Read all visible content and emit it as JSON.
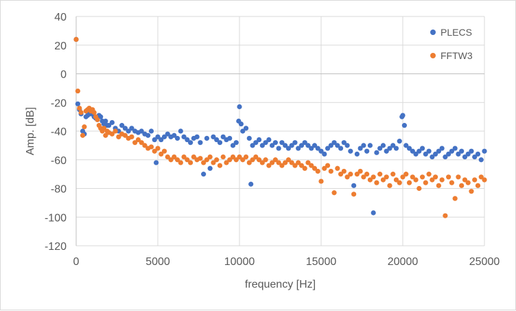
{
  "chart_data": {
    "type": "scatter",
    "title": "",
    "xlabel": "frequency [Hz]",
    "ylabel": "Amp. [dB]",
    "xlim": [
      0,
      25000
    ],
    "ylim": [
      -120,
      40
    ],
    "x_ticks": [
      0,
      5000,
      10000,
      15000,
      20000,
      25000
    ],
    "y_ticks": [
      -120,
      -100,
      -80,
      -60,
      -40,
      -20,
      0,
      20,
      40
    ],
    "grid": true,
    "legend_position": "top-right",
    "series": [
      {
        "name": "PLECS",
        "color": "#4472C4",
        "points": [
          [
            0,
            24
          ],
          [
            100,
            -21
          ],
          [
            200,
            -25
          ],
          [
            300,
            -28
          ],
          [
            400,
            -40
          ],
          [
            500,
            -42
          ],
          [
            600,
            -30
          ],
          [
            700,
            -29
          ],
          [
            800,
            -27
          ],
          [
            900,
            -28
          ],
          [
            1000,
            -28
          ],
          [
            1100,
            -30
          ],
          [
            1200,
            -31
          ],
          [
            1300,
            -32
          ],
          [
            1400,
            -29
          ],
          [
            1500,
            -30
          ],
          [
            1600,
            -33
          ],
          [
            1700,
            -35
          ],
          [
            1800,
            -33
          ],
          [
            1900,
            -36
          ],
          [
            2000,
            -36
          ],
          [
            2200,
            -34
          ],
          [
            2400,
            -38
          ],
          [
            2600,
            -40
          ],
          [
            2800,
            -36
          ],
          [
            3000,
            -38
          ],
          [
            3200,
            -40
          ],
          [
            3400,
            -38
          ],
          [
            3600,
            -40
          ],
          [
            3800,
            -41
          ],
          [
            4000,
            -40
          ],
          [
            4200,
            -42
          ],
          [
            4400,
            -43
          ],
          [
            4600,
            -40
          ],
          [
            4800,
            -46
          ],
          [
            4900,
            -62
          ],
          [
            5000,
            -44
          ],
          [
            5200,
            -46
          ],
          [
            5400,
            -44
          ],
          [
            5600,
            -42
          ],
          [
            5800,
            -44
          ],
          [
            6000,
            -43
          ],
          [
            6200,
            -45
          ],
          [
            6400,
            -40
          ],
          [
            6600,
            -44
          ],
          [
            6800,
            -46
          ],
          [
            7000,
            -48
          ],
          [
            7200,
            -45
          ],
          [
            7400,
            -44
          ],
          [
            7600,
            -48
          ],
          [
            7800,
            -70
          ],
          [
            8000,
            -45
          ],
          [
            8200,
            -66
          ],
          [
            8400,
            -44
          ],
          [
            8600,
            -46
          ],
          [
            8800,
            -48
          ],
          [
            9000,
            -44
          ],
          [
            9200,
            -46
          ],
          [
            9400,
            -45
          ],
          [
            9600,
            -50
          ],
          [
            9800,
            -48
          ],
          [
            9950,
            -33
          ],
          [
            10000,
            -23
          ],
          [
            10100,
            -35
          ],
          [
            10200,
            -40
          ],
          [
            10400,
            -38
          ],
          [
            10600,
            -45
          ],
          [
            10700,
            -77
          ],
          [
            10800,
            -50
          ],
          [
            11000,
            -48
          ],
          [
            11200,
            -46
          ],
          [
            11400,
            -50
          ],
          [
            11600,
            -48
          ],
          [
            11800,
            -46
          ],
          [
            12000,
            -50
          ],
          [
            12200,
            -48
          ],
          [
            12400,
            -52
          ],
          [
            12600,
            -48
          ],
          [
            12800,
            -50
          ],
          [
            13000,
            -52
          ],
          [
            13200,
            -50
          ],
          [
            13400,
            -48
          ],
          [
            13600,
            -52
          ],
          [
            13800,
            -50
          ],
          [
            14000,
            -48
          ],
          [
            14200,
            -50
          ],
          [
            14400,
            -52
          ],
          [
            14600,
            -50
          ],
          [
            14800,
            -52
          ],
          [
            15000,
            -54
          ],
          [
            15200,
            -56
          ],
          [
            15400,
            -52
          ],
          [
            15600,
            -50
          ],
          [
            15800,
            -48
          ],
          [
            16000,
            -50
          ],
          [
            16200,
            -52
          ],
          [
            16400,
            -48
          ],
          [
            16600,
            -50
          ],
          [
            16800,
            -54
          ],
          [
            17000,
            -78
          ],
          [
            17200,
            -56
          ],
          [
            17400,
            -52
          ],
          [
            17600,
            -50
          ],
          [
            17800,
            -54
          ],
          [
            18000,
            -50
          ],
          [
            18200,
            -97
          ],
          [
            18400,
            -55
          ],
          [
            18600,
            -52
          ],
          [
            18800,
            -50
          ],
          [
            19000,
            -54
          ],
          [
            19200,
            -52
          ],
          [
            19400,
            -50
          ],
          [
            19600,
            -52
          ],
          [
            19800,
            -47
          ],
          [
            19950,
            -30
          ],
          [
            20000,
            -29
          ],
          [
            20100,
            -36
          ],
          [
            20200,
            -50
          ],
          [
            20400,
            -52
          ],
          [
            20600,
            -54
          ],
          [
            20800,
            -56
          ],
          [
            21000,
            -54
          ],
          [
            21200,
            -52
          ],
          [
            21400,
            -56
          ],
          [
            21600,
            -54
          ],
          [
            21800,
            -58
          ],
          [
            22000,
            -56
          ],
          [
            22200,
            -54
          ],
          [
            22400,
            -52
          ],
          [
            22600,
            -58
          ],
          [
            22800,
            -56
          ],
          [
            23000,
            -54
          ],
          [
            23200,
            -52
          ],
          [
            23400,
            -56
          ],
          [
            23600,
            -54
          ],
          [
            23800,
            -58
          ],
          [
            24000,
            -56
          ],
          [
            24200,
            -54
          ],
          [
            24400,
            -58
          ],
          [
            24600,
            -56
          ],
          [
            24800,
            -60
          ],
          [
            25000,
            -54
          ]
        ]
      },
      {
        "name": "FFTW3",
        "color": "#ED7D31",
        "points": [
          [
            0,
            24
          ],
          [
            100,
            -12
          ],
          [
            200,
            -24
          ],
          [
            300,
            -27
          ],
          [
            400,
            -43
          ],
          [
            500,
            -37
          ],
          [
            600,
            -26
          ],
          [
            700,
            -25
          ],
          [
            800,
            -24
          ],
          [
            900,
            -26
          ],
          [
            1000,
            -25
          ],
          [
            1100,
            -27
          ],
          [
            1200,
            -30
          ],
          [
            1300,
            -32
          ],
          [
            1400,
            -36
          ],
          [
            1500,
            -38
          ],
          [
            1600,
            -40
          ],
          [
            1700,
            -38
          ],
          [
            1800,
            -43
          ],
          [
            1900,
            -40
          ],
          [
            2000,
            -41
          ],
          [
            2200,
            -42
          ],
          [
            2400,
            -40
          ],
          [
            2600,
            -44
          ],
          [
            2800,
            -42
          ],
          [
            3000,
            -43
          ],
          [
            3200,
            -45
          ],
          [
            3400,
            -44
          ],
          [
            3600,
            -48
          ],
          [
            3800,
            -46
          ],
          [
            4000,
            -48
          ],
          [
            4200,
            -50
          ],
          [
            4400,
            -52
          ],
          [
            4600,
            -51
          ],
          [
            4800,
            -54
          ],
          [
            5000,
            -52
          ],
          [
            5200,
            -56
          ],
          [
            5400,
            -54
          ],
          [
            5600,
            -58
          ],
          [
            5800,
            -60
          ],
          [
            6000,
            -58
          ],
          [
            6200,
            -60
          ],
          [
            6400,
            -62
          ],
          [
            6600,
            -58
          ],
          [
            6800,
            -60
          ],
          [
            7000,
            -62
          ],
          [
            7200,
            -58
          ],
          [
            7400,
            -60
          ],
          [
            7600,
            -59
          ],
          [
            7800,
            -62
          ],
          [
            8000,
            -60
          ],
          [
            8200,
            -58
          ],
          [
            8400,
            -62
          ],
          [
            8600,
            -60
          ],
          [
            8800,
            -64
          ],
          [
            9000,
            -58
          ],
          [
            9200,
            -62
          ],
          [
            9400,
            -60
          ],
          [
            9600,
            -58
          ],
          [
            9800,
            -60
          ],
          [
            10000,
            -58
          ],
          [
            10200,
            -60
          ],
          [
            10400,
            -58
          ],
          [
            10600,
            -62
          ],
          [
            10800,
            -60
          ],
          [
            11000,
            -58
          ],
          [
            11200,
            -60
          ],
          [
            11400,
            -62
          ],
          [
            11600,
            -60
          ],
          [
            11800,
            -64
          ],
          [
            12000,
            -62
          ],
          [
            12200,
            -60
          ],
          [
            12400,
            -62
          ],
          [
            12600,
            -64
          ],
          [
            12800,
            -62
          ],
          [
            13000,
            -60
          ],
          [
            13200,
            -62
          ],
          [
            13400,
            -64
          ],
          [
            13600,
            -62
          ],
          [
            13800,
            -64
          ],
          [
            14000,
            -66
          ],
          [
            14200,
            -62
          ],
          [
            14400,
            -64
          ],
          [
            14600,
            -66
          ],
          [
            14800,
            -68
          ],
          [
            15000,
            -75
          ],
          [
            15200,
            -66
          ],
          [
            15400,
            -64
          ],
          [
            15600,
            -68
          ],
          [
            15800,
            -83
          ],
          [
            16000,
            -66
          ],
          [
            16200,
            -70
          ],
          [
            16400,
            -68
          ],
          [
            16600,
            -72
          ],
          [
            16800,
            -70
          ],
          [
            17000,
            -84
          ],
          [
            17200,
            -70
          ],
          [
            17400,
            -68
          ],
          [
            17600,
            -72
          ],
          [
            17800,
            -70
          ],
          [
            18000,
            -74
          ],
          [
            18200,
            -72
          ],
          [
            18400,
            -76
          ],
          [
            18600,
            -70
          ],
          [
            18800,
            -74
          ],
          [
            19000,
            -72
          ],
          [
            19200,
            -78
          ],
          [
            19400,
            -70
          ],
          [
            19600,
            -74
          ],
          [
            19800,
            -76
          ],
          [
            20000,
            -72
          ],
          [
            20200,
            -70
          ],
          [
            20400,
            -76
          ],
          [
            20600,
            -72
          ],
          [
            20800,
            -74
          ],
          [
            21000,
            -80
          ],
          [
            21200,
            -72
          ],
          [
            21400,
            -76
          ],
          [
            21600,
            -70
          ],
          [
            21800,
            -74
          ],
          [
            22000,
            -72
          ],
          [
            22200,
            -78
          ],
          [
            22400,
            -74
          ],
          [
            22600,
            -99
          ],
          [
            22800,
            -72
          ],
          [
            23000,
            -76
          ],
          [
            23200,
            -87
          ],
          [
            23400,
            -72
          ],
          [
            23600,
            -78
          ],
          [
            23800,
            -74
          ],
          [
            24000,
            -76
          ],
          [
            24200,
            -82
          ],
          [
            24400,
            -74
          ],
          [
            24600,
            -78
          ],
          [
            24800,
            -72
          ],
          [
            25000,
            -74
          ]
        ]
      }
    ]
  }
}
